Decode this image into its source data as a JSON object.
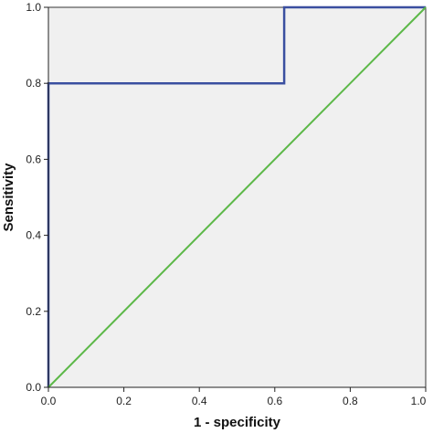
{
  "chart_data": {
    "type": "line",
    "title": "",
    "xlabel": "1 - specificity",
    "ylabel": "Sensitivity",
    "xlim": [
      0,
      1
    ],
    "ylim": [
      0,
      1
    ],
    "x_ticks": [
      "0.0",
      "0.2",
      "0.4",
      "0.6",
      "0.8",
      "1.0"
    ],
    "y_ticks": [
      "0.0",
      "0.2",
      "0.4",
      "0.6",
      "0.8",
      "1.0"
    ],
    "grid": false,
    "legend": "none",
    "plot_background": "#f0f0f0",
    "series": [
      {
        "color": "#3a4fa0",
        "x": [
          0.0,
          0.0,
          0.625,
          0.625,
          1.0
        ],
        "y": [
          0.0,
          0.8,
          0.8,
          1.0,
          1.0
        ]
      },
      {
        "color": "#5cb848",
        "x": [
          0.0,
          1.0
        ],
        "y": [
          0.0,
          1.0
        ]
      }
    ]
  }
}
